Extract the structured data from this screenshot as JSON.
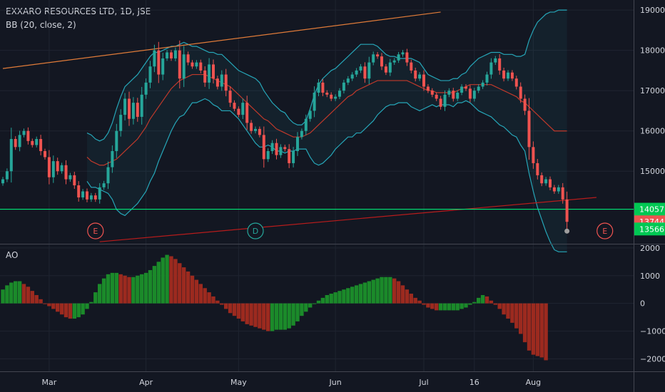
{
  "header": {
    "title": "EXXARO RESOURCES LTD, 1D, JSE",
    "indicator": "BB (20, close, 2)",
    "ao_label": "AO"
  },
  "colors": {
    "background": "#131722",
    "up": "#26a69a",
    "down": "#ef5350",
    "bb_band": "#26a6b8",
    "bb_basis": "#c0392b",
    "trend_upper": "#e07b39",
    "trend_lower": "#b71c1c",
    "support": "#00e676",
    "ao_up": "#1b8a2a",
    "ao_down": "#9c2a1f",
    "event_d": "#26a69a",
    "event_e": "#ef5350"
  },
  "chart_data": [
    {
      "type": "candlestick",
      "symbol": "EXXARO RESOURCES LTD",
      "interval": "1D",
      "exchange": "JSE",
      "y_ticks": [
        19000,
        18000,
        17000,
        16000,
        15000
      ],
      "ylim": [
        13200,
        19250
      ],
      "x_ticks": [
        "Mar",
        "Apr",
        "May",
        "Jun",
        "Jul",
        "16",
        "Aug"
      ],
      "x_tick_index": [
        11,
        34,
        56,
        79,
        100,
        112,
        126
      ],
      "close": [
        14800,
        15000,
        15800,
        15600,
        15900,
        16000,
        15750,
        15650,
        15800,
        15500,
        15350,
        14850,
        15250,
        15000,
        15150,
        14800,
        14900,
        14650,
        14350,
        14500,
        14300,
        14400,
        14300,
        14600,
        14700,
        15100,
        15500,
        16000,
        16400,
        16800,
        16300,
        16700,
        16350,
        16900,
        17200,
        17600,
        18000,
        17400,
        17800,
        17950,
        17800,
        18000,
        17300,
        17900,
        17700,
        17600,
        17700,
        17500,
        17200,
        17650,
        17300,
        17100,
        17400,
        17000,
        16700,
        16550,
        16400,
        16700,
        16200,
        16000,
        16050,
        15900,
        15300,
        15500,
        15700,
        15400,
        15600,
        15550,
        15200,
        15500,
        15850,
        16000,
        16300,
        16500,
        16950,
        17200,
        16950,
        16900,
        16800,
        16850,
        17000,
        17200,
        17300,
        17400,
        17500,
        17600,
        17300,
        17700,
        17900,
        17850,
        17600,
        17450,
        17700,
        17750,
        17900,
        17950,
        17700,
        17500,
        17300,
        17400,
        17100,
        17000,
        16900,
        16800,
        16600,
        16900,
        17000,
        16800,
        16950,
        17100,
        17050,
        16800,
        17000,
        17100,
        17200,
        17400,
        17700,
        17800,
        17500,
        17300,
        17450,
        17300,
        17100,
        16800,
        16500,
        15600,
        15200,
        14900,
        14700,
        14800,
        14600,
        14500,
        14600,
        14300,
        13744
      ],
      "bb_upper": [
        null,
        null,
        null,
        null,
        null,
        null,
        null,
        null,
        null,
        null,
        null,
        null,
        null,
        null,
        null,
        null,
        null,
        null,
        null,
        null,
        15950,
        15900,
        15800,
        15750,
        15800,
        15950,
        16200,
        16550,
        16850,
        17100,
        17200,
        17300,
        17400,
        17550,
        17700,
        17850,
        17950,
        17950,
        18000,
        18050,
        18100,
        18100,
        18150,
        18200,
        18150,
        18100,
        18100,
        18050,
        18000,
        17950,
        17950,
        17900,
        17900,
        17800,
        17700,
        17600,
        17500,
        17450,
        17400,
        17350,
        17300,
        17200,
        17000,
        16850,
        16700,
        16600,
        16500,
        16450,
        16300,
        16200,
        16150,
        16150,
        16250,
        16550,
        16900,
        17150,
        17300,
        17400,
        17500,
        17550,
        17650,
        17750,
        17850,
        17950,
        18050,
        18150,
        18150,
        18150,
        18150,
        18100,
        18000,
        17900,
        17850,
        17850,
        17800,
        17800,
        17800,
        17800,
        17750,
        17700,
        17550,
        17400,
        17350,
        17300,
        17250,
        17250,
        17250,
        17300,
        17300,
        17400,
        17450,
        17600,
        17700,
        17800,
        17850,
        17900,
        17950,
        17950,
        17950,
        17900,
        17900,
        17900,
        17850,
        17850,
        17900,
        18250,
        18500,
        18700,
        18800,
        18900,
        18950,
        18950,
        19000,
        19000,
        19000
      ],
      "bb_basis": [
        null,
        null,
        null,
        null,
        null,
        null,
        null,
        null,
        null,
        null,
        null,
        null,
        null,
        null,
        null,
        null,
        null,
        null,
        null,
        null,
        15350,
        15250,
        15200,
        15150,
        15150,
        15200,
        15250,
        15300,
        15400,
        15500,
        15600,
        15700,
        15800,
        15950,
        16100,
        16300,
        16450,
        16600,
        16750,
        16900,
        17050,
        17150,
        17250,
        17300,
        17350,
        17400,
        17400,
        17400,
        17400,
        17350,
        17300,
        17250,
        17200,
        17150,
        17100,
        17000,
        16900,
        16800,
        16700,
        16600,
        16500,
        16400,
        16300,
        16250,
        16150,
        16050,
        16000,
        15950,
        15900,
        15850,
        15850,
        15850,
        15900,
        15950,
        16050,
        16150,
        16250,
        16350,
        16450,
        16550,
        16650,
        16750,
        16850,
        16900,
        17000,
        17050,
        17100,
        17150,
        17200,
        17250,
        17250,
        17250,
        17250,
        17250,
        17250,
        17250,
        17250,
        17200,
        17150,
        17100,
        17050,
        17000,
        17000,
        16950,
        16950,
        16950,
        16950,
        16950,
        17000,
        17050,
        17100,
        17150,
        17150,
        17150,
        17150,
        17150,
        17150,
        17100,
        17050,
        17000,
        16950,
        16900,
        16850,
        16750,
        16700,
        16600,
        16500,
        16400,
        16300,
        16200,
        16100,
        16000,
        16000,
        16000,
        16000
      ],
      "bb_lower": [
        null,
        null,
        null,
        null,
        null,
        null,
        null,
        null,
        null,
        null,
        null,
        null,
        null,
        null,
        null,
        null,
        null,
        null,
        null,
        null,
        14750,
        14600,
        14600,
        14550,
        14500,
        14450,
        14300,
        14050,
        13950,
        13900,
        14000,
        14100,
        14200,
        14350,
        14500,
        14750,
        14950,
        15250,
        15500,
        15750,
        16000,
        16200,
        16350,
        16400,
        16550,
        16700,
        16700,
        16750,
        16800,
        16750,
        16650,
        16600,
        16500,
        16500,
        16500,
        16400,
        16300,
        16150,
        16000,
        15850,
        15700,
        15600,
        15600,
        15650,
        15600,
        15500,
        15500,
        15450,
        15500,
        15500,
        15550,
        15550,
        15550,
        15350,
        15200,
        15150,
        15200,
        15300,
        15400,
        15550,
        15650,
        15750,
        15850,
        15850,
        15950,
        15950,
        16050,
        16150,
        16250,
        16400,
        16500,
        16600,
        16650,
        16650,
        16700,
        16700,
        16700,
        16600,
        16550,
        16500,
        16550,
        16600,
        16650,
        16600,
        16650,
        16650,
        16650,
        16600,
        16700,
        16700,
        16750,
        16700,
        16600,
        16500,
        16450,
        16400,
        16350,
        16250,
        16150,
        16100,
        16000,
        15900,
        15850,
        15650,
        15500,
        14950,
        14500,
        14100,
        13800,
        13500,
        13250,
        13050,
        13000,
        13000,
        13000
      ],
      "trend_upper": {
        "x": [
          0,
          104
        ],
        "y": [
          17550,
          18950
        ]
      },
      "trend_lower": {
        "x": [
          23,
          141
        ],
        "y": [
          13250,
          14350
        ]
      },
      "support_level": 14057,
      "last_close": 13744,
      "low_marker": 13566,
      "price_labels": [
        "14057",
        "13744",
        "13566"
      ],
      "events": [
        {
          "label": "E",
          "index": 22
        },
        {
          "label": "D",
          "index": 60
        },
        {
          "label": "E",
          "index": 143
        }
      ]
    },
    {
      "type": "bar",
      "title": "AO",
      "y_ticks": [
        2000,
        1000,
        0,
        -1000,
        -2000
      ],
      "ylim": [
        -2450,
        2150
      ],
      "values": [
        500,
        650,
        750,
        800,
        800,
        700,
        600,
        450,
        300,
        150,
        0,
        -100,
        -200,
        -300,
        -400,
        -500,
        -550,
        -550,
        -500,
        -400,
        -200,
        50,
        400,
        700,
        900,
        1050,
        1100,
        1100,
        1050,
        1000,
        950,
        950,
        1000,
        1050,
        1100,
        1200,
        1350,
        1500,
        1650,
        1750,
        1700,
        1600,
        1450,
        1300,
        1150,
        1000,
        850,
        700,
        550,
        400,
        250,
        100,
        -50,
        -200,
        -350,
        -450,
        -550,
        -650,
        -750,
        -800,
        -850,
        -900,
        -950,
        -1000,
        -1000,
        -950,
        -950,
        -950,
        -900,
        -800,
        -650,
        -450,
        -300,
        -150,
        0,
        100,
        200,
        300,
        350,
        400,
        450,
        500,
        550,
        600,
        650,
        700,
        750,
        800,
        850,
        900,
        950,
        950,
        950,
        900,
        800,
        650,
        500,
        350,
        200,
        100,
        -50,
        -150,
        -200,
        -250,
        -250,
        -250,
        -250,
        -250,
        -250,
        -200,
        -150,
        -50,
        50,
        200,
        300,
        250,
        100,
        -50,
        -200,
        -400,
        -550,
        -700,
        -900,
        -1100,
        -1400,
        -1700,
        -1850,
        -1900,
        -1950,
        -2050
      ]
    }
  ]
}
